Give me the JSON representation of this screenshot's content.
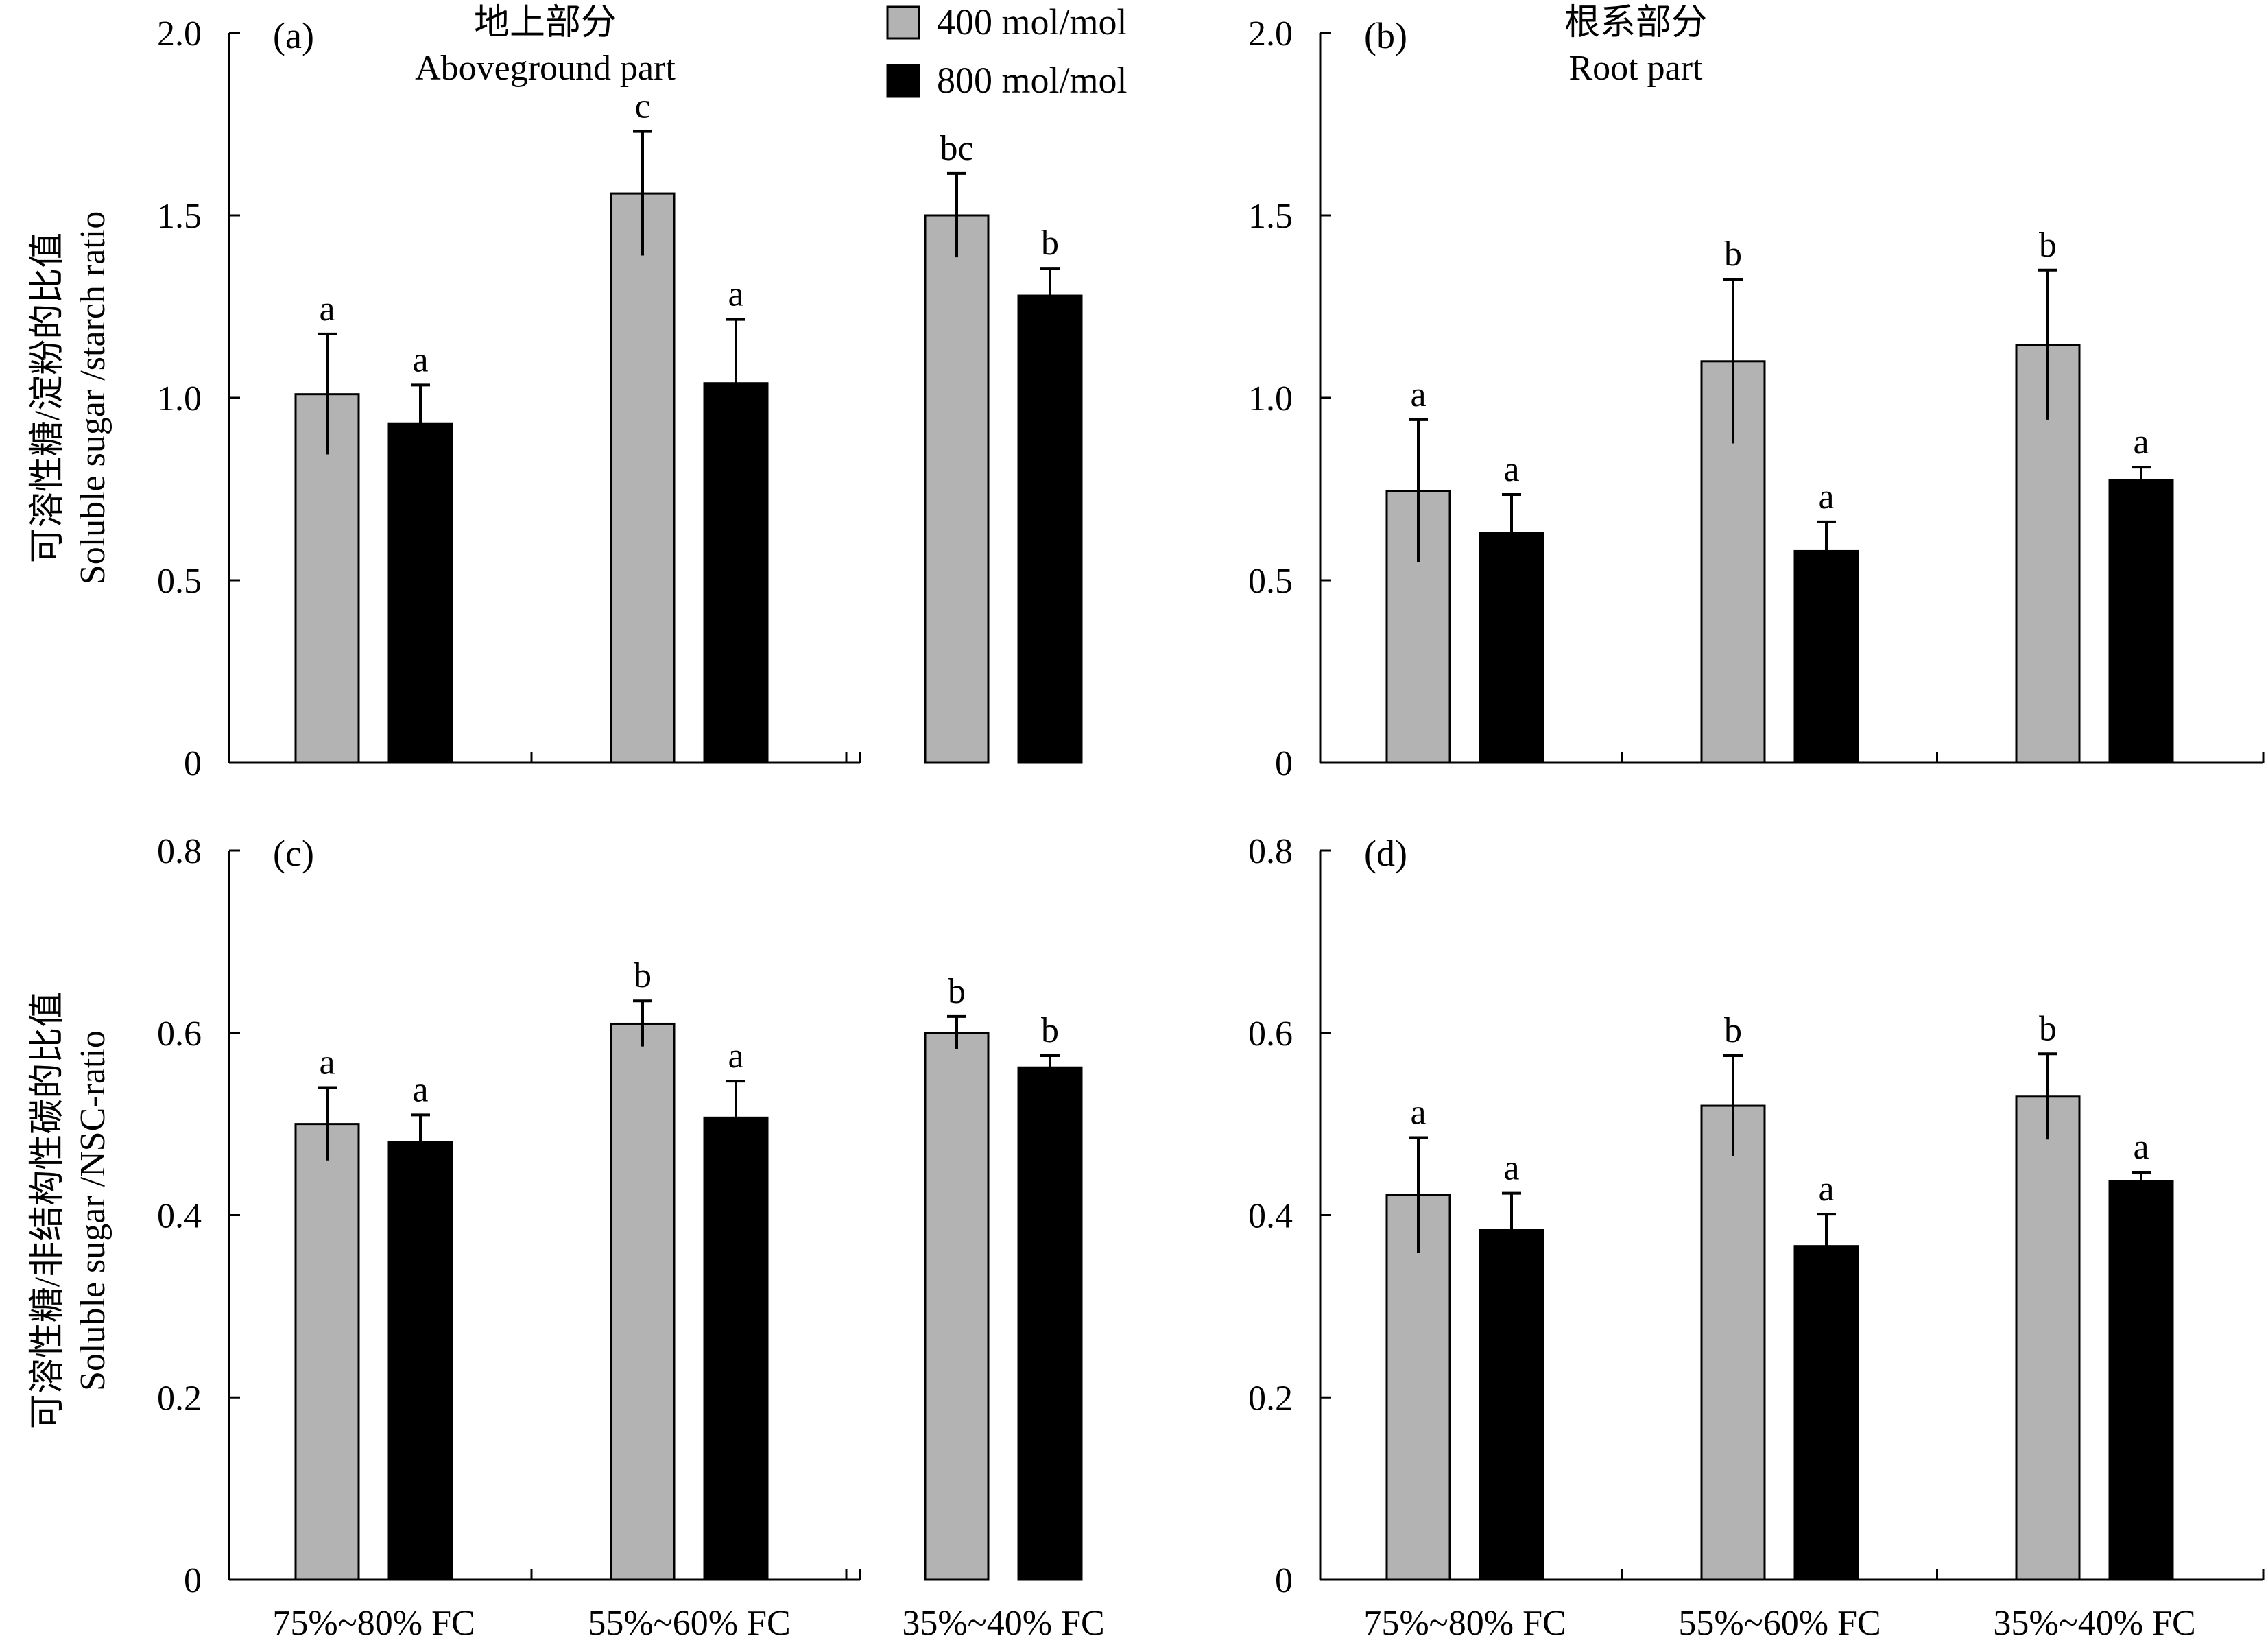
{
  "colors": {
    "low_co2": "#b3b3b3",
    "high_co2": "#000000",
    "axis": "#000000"
  },
  "legend": {
    "items": [
      "400 mol/mol",
      "800 mol/mol"
    ],
    "placement": "top-center"
  },
  "y_labels": {
    "top": {
      "zh": "可溶性糖/淀粉的比值",
      "en": "Soluble sugar /starch ratio"
    },
    "bottom": {
      "zh": "可溶性糖/非结构性碳的比值",
      "en": "Soluble sugar /NSC-ratio"
    }
  },
  "chart_data": [
    {
      "type": "bar",
      "panel_label": "(a)",
      "title_zh": "地上部分",
      "title_en": "Aboveground part",
      "categories": [
        "75%~80% FC",
        "55%~60% FC",
        "35%~40% FC"
      ],
      "ylim": [
        0,
        2.0
      ],
      "yticks": [
        0,
        0.5,
        1.0,
        1.5,
        2.0
      ],
      "ytick_labels": [
        "0",
        "0.5",
        "1.0",
        "1.5",
        "2.0"
      ],
      "series": [
        {
          "name": "400 mol/mol",
          "values": [
            1.01,
            1.56,
            1.5
          ],
          "errors": [
            0.165,
            0.17,
            0.115
          ],
          "letters": [
            "a",
            "c",
            "bc"
          ]
        },
        {
          "name": "800 mol/mol",
          "values": [
            0.93,
            1.04,
            1.28
          ],
          "errors": [
            0.105,
            0.175,
            0.075
          ],
          "letters": [
            "a",
            "a",
            "b"
          ]
        }
      ]
    },
    {
      "type": "bar",
      "panel_label": "(b)",
      "title_zh": "根系部分",
      "title_en": "Root part",
      "categories": [
        "75%~80% FC",
        "55%~60% FC",
        "35%~40% FC"
      ],
      "ylim": [
        0,
        2.0
      ],
      "yticks": [
        0,
        0.5,
        1.0,
        1.5,
        2.0
      ],
      "ytick_labels": [
        "0",
        "0.5",
        "1.0",
        "1.5",
        "2.0"
      ],
      "series": [
        {
          "name": "400 mol/mol",
          "values": [
            0.745,
            1.1,
            1.145
          ],
          "errors": [
            0.195,
            0.225,
            0.205
          ],
          "letters": [
            "a",
            "b",
            "b"
          ]
        },
        {
          "name": "800 mol/mol",
          "values": [
            0.63,
            0.58,
            0.775
          ],
          "errors": [
            0.105,
            0.08,
            0.035
          ],
          "letters": [
            "a",
            "a",
            "a"
          ]
        }
      ]
    },
    {
      "type": "bar",
      "panel_label": "(c)",
      "title_zh": "",
      "title_en": "",
      "categories": [
        "75%~80% FC",
        "55%~60% FC",
        "35%~40% FC"
      ],
      "ylim": [
        0,
        0.8
      ],
      "yticks": [
        0,
        0.2,
        0.4,
        0.6,
        0.8
      ],
      "ytick_labels": [
        "0",
        "0.2",
        "0.4",
        "0.6",
        "0.8"
      ],
      "series": [
        {
          "name": "400 mol/mol",
          "values": [
            0.5,
            0.61,
            0.6
          ],
          "errors": [
            0.04,
            0.025,
            0.018
          ],
          "letters": [
            "a",
            "b",
            "b"
          ]
        },
        {
          "name": "800 mol/mol",
          "values": [
            0.48,
            0.507,
            0.562
          ],
          "errors": [
            0.03,
            0.04,
            0.013
          ],
          "letters": [
            "a",
            "a",
            "b"
          ]
        }
      ]
    },
    {
      "type": "bar",
      "panel_label": "(d)",
      "title_zh": "",
      "title_en": "",
      "categories": [
        "75%~80% FC",
        "55%~60% FC",
        "35%~40% FC"
      ],
      "ylim": [
        0,
        0.8
      ],
      "yticks": [
        0,
        0.2,
        0.4,
        0.6,
        0.8
      ],
      "ytick_labels": [
        "0",
        "0.2",
        "0.4",
        "0.6",
        "0.8"
      ],
      "series": [
        {
          "name": "400 mol/mol",
          "values": [
            0.422,
            0.52,
            0.53
          ],
          "errors": [
            0.063,
            0.055,
            0.047
          ],
          "letters": [
            "a",
            "b",
            "b"
          ]
        },
        {
          "name": "800 mol/mol",
          "values": [
            0.384,
            0.366,
            0.437
          ],
          "errors": [
            0.04,
            0.035,
            0.01
          ],
          "letters": [
            "a",
            "a",
            "a"
          ]
        }
      ]
    }
  ]
}
